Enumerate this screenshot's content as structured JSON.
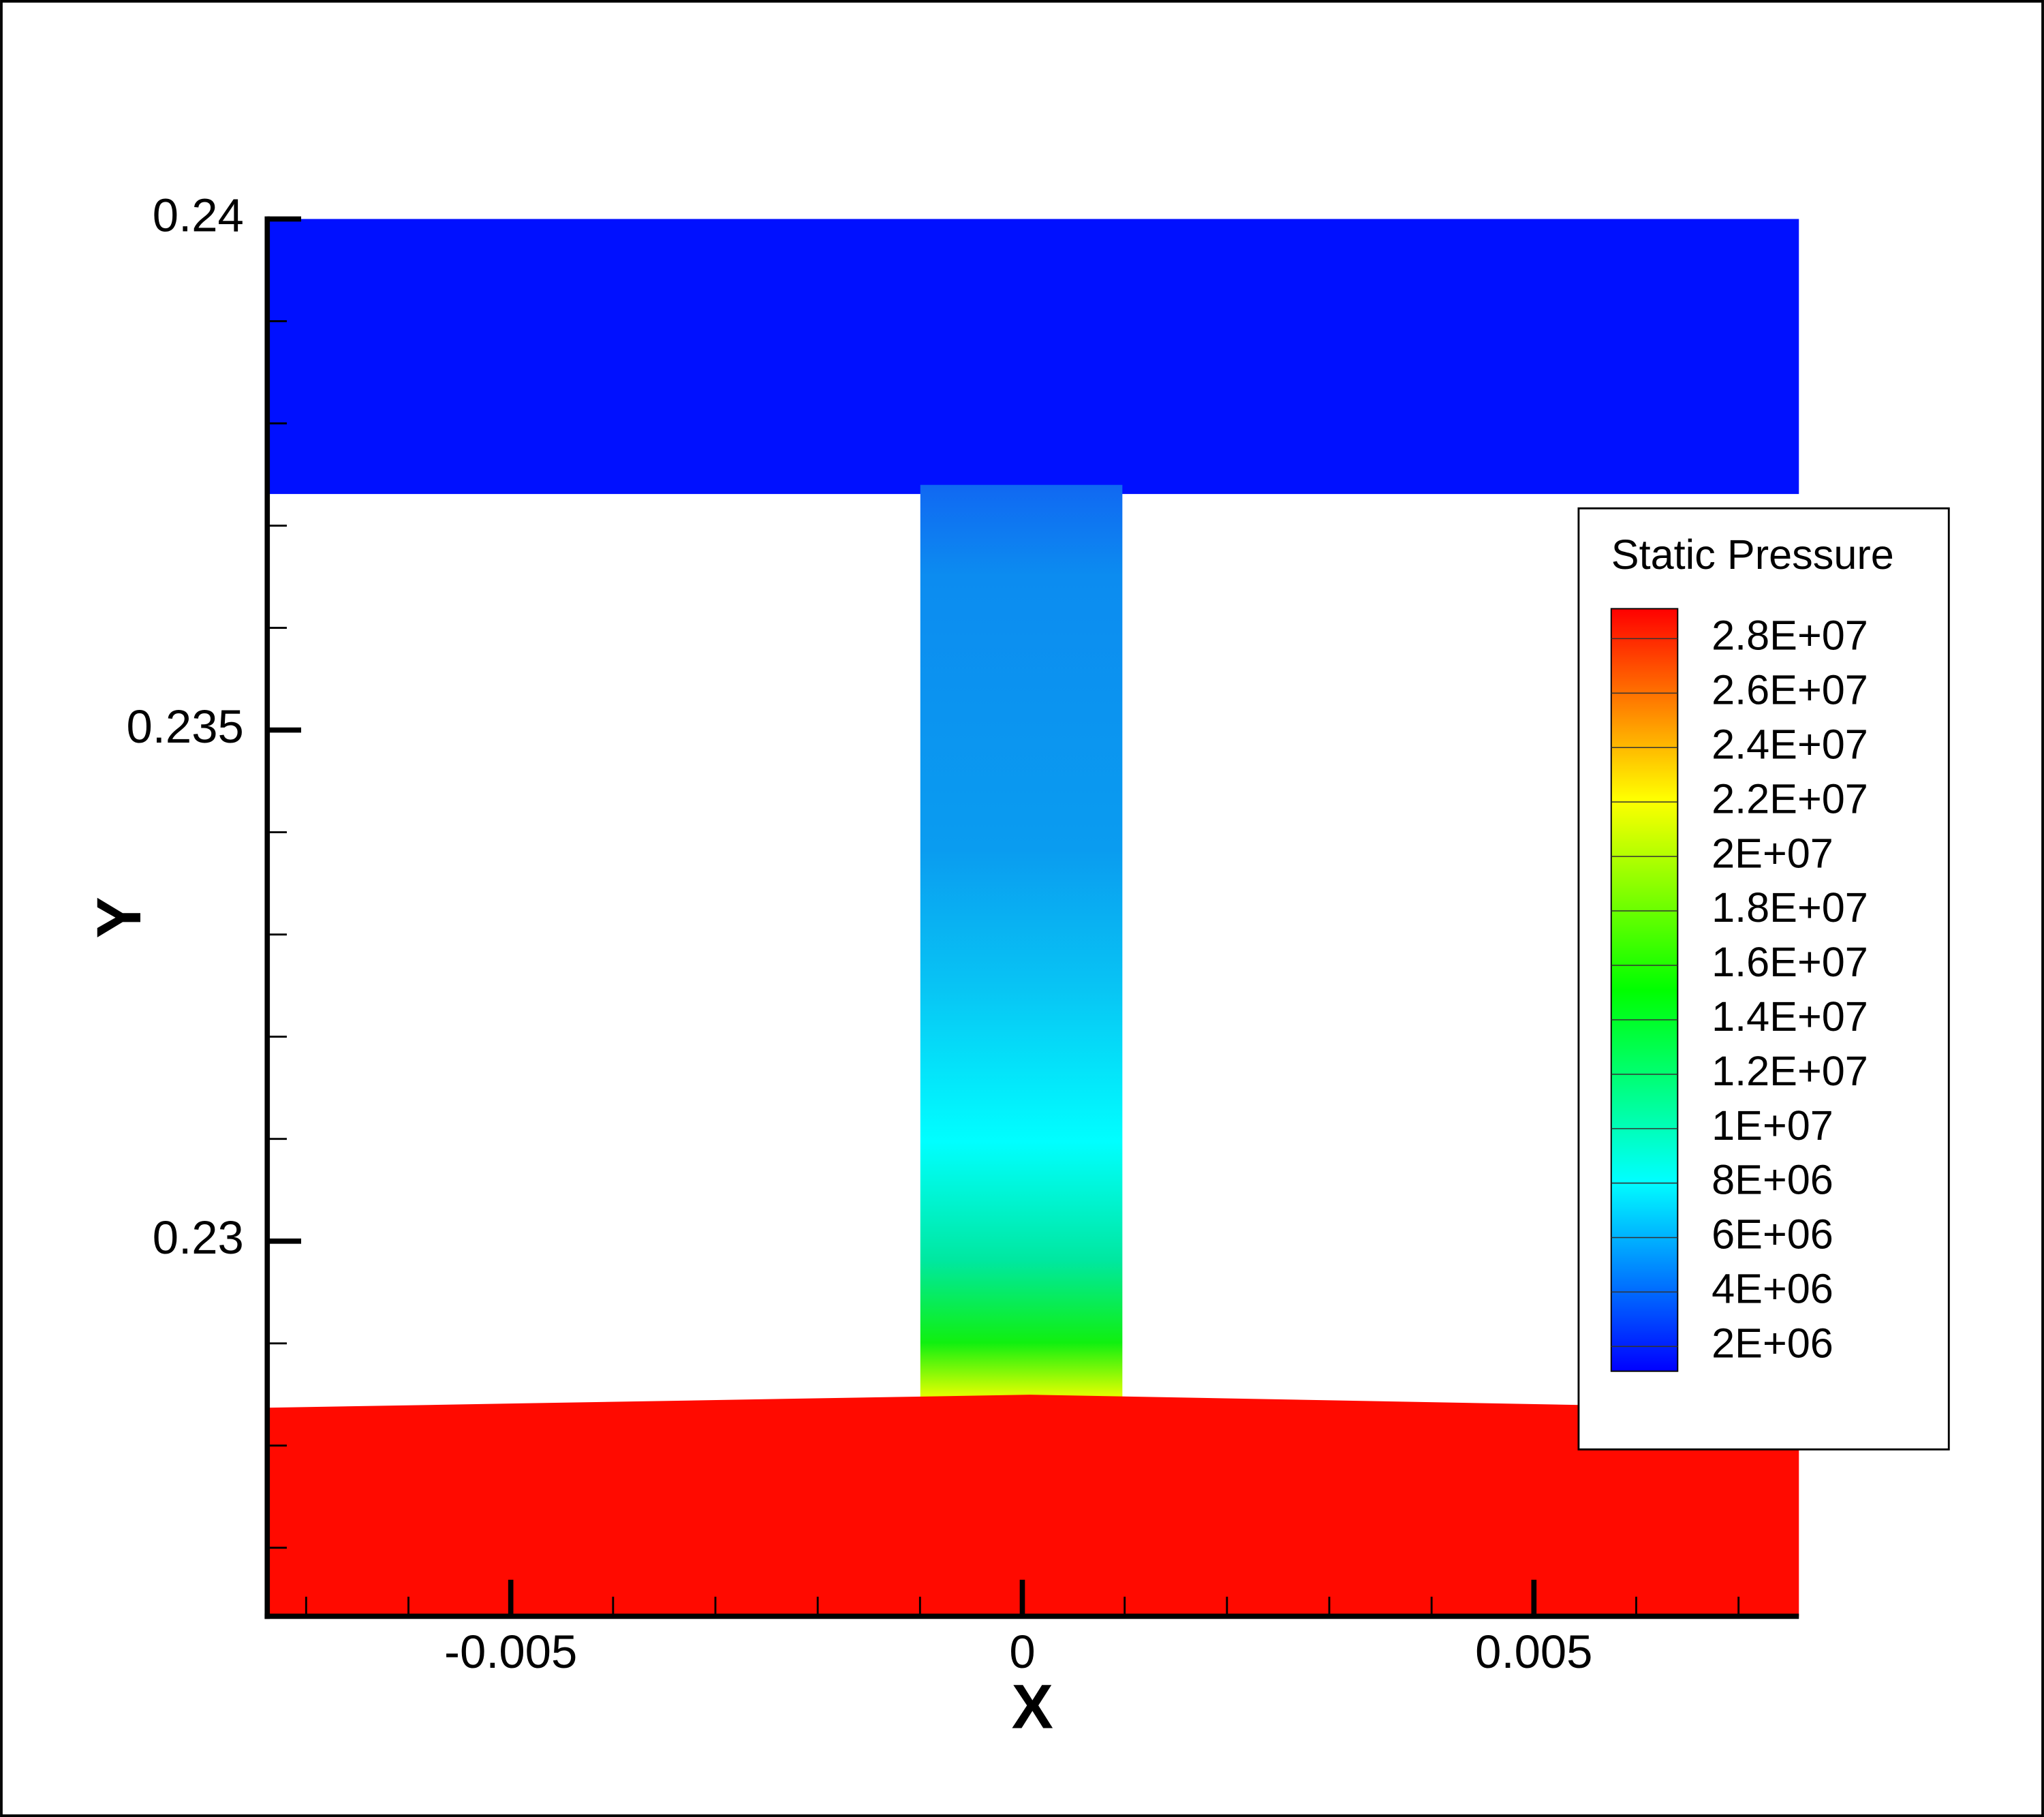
{
  "chart_data": {
    "type": "contour",
    "xlabel": "X",
    "ylabel": "Y",
    "xlim": [
      -0.00738,
      0.00759
    ],
    "ylim": [
      0.22633,
      0.24
    ],
    "xticks": [
      -0.005,
      0,
      0.005
    ],
    "yticks": [
      0.23,
      0.235,
      0.24
    ],
    "xminorticks": [
      -0.007,
      -0.006,
      -0.004,
      -0.003,
      -0.002,
      -0.001,
      0.001,
      0.002,
      0.003,
      0.004,
      0.006,
      0.007
    ],
    "yminorticks": [
      0.227,
      0.228,
      0.229,
      0.231,
      0.232,
      0.233,
      0.234,
      0.236,
      0.237,
      0.238,
      0.239
    ],
    "colorbar": {
      "title": "Static Pressure",
      "lim": [
        1090000,
        29100000
      ],
      "colormap": [
        "#0000ff",
        "#00ffff",
        "#00ff00",
        "#ffff00",
        "#ff0000"
      ],
      "ticks": [
        {
          "value": 28000000,
          "label": "2.8E+07"
        },
        {
          "value": 26000000,
          "label": "2.6E+07"
        },
        {
          "value": 24000000,
          "label": "2.4E+07"
        },
        {
          "value": 22000000,
          "label": "2.2E+07"
        },
        {
          "value": 20000000,
          "label": "2E+07"
        },
        {
          "value": 18000000,
          "label": "1.8E+07"
        },
        {
          "value": 16000000,
          "label": "1.6E+07"
        },
        {
          "value": 14000000,
          "label": "1.4E+07"
        },
        {
          "value": 12000000,
          "label": "1.2E+07"
        },
        {
          "value": 10000000,
          "label": "1E+07"
        },
        {
          "value": 8000000,
          "label": "8E+06"
        },
        {
          "value": 6000000,
          "label": "6E+06"
        },
        {
          "value": 4000000,
          "label": "4E+06"
        },
        {
          "value": 2000000,
          "label": "2E+06"
        }
      ]
    }
  }
}
